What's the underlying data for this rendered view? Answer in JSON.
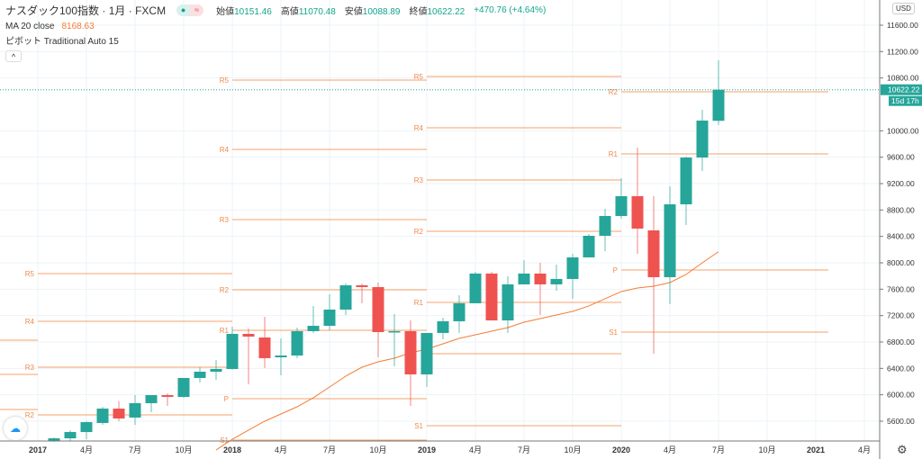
{
  "header": {
    "symbol": "ナスダック100指数",
    "interval": "1月",
    "source": "FXCM",
    "sep": "·",
    "open_label": "始値",
    "open": "10151.46",
    "high_label": "高値",
    "high": "11070.48",
    "low_label": "安値",
    "low": "10088.89",
    "close_label": "終値",
    "close": "10622.22",
    "change": "+470.76 (+4.64%)",
    "ma_label": "MA 20 close",
    "ma_value": "8168.63",
    "pivot_label": "ピボット Traditional Auto 15",
    "collapse": "^",
    "badge_dot": "●",
    "badge_wave": "≈"
  },
  "price_axis": {
    "currency": "USD",
    "ticks": [
      11600,
      11200,
      10800,
      10000,
      9600,
      9200,
      8800,
      8400,
      8000,
      7600,
      7200,
      6800,
      6400,
      6000,
      5600
    ],
    "last_price": "10622.22",
    "countdown": "15d 17h"
  },
  "time_axis": [
    "2017",
    "4月",
    "7月",
    "10月",
    "2018",
    "4月",
    "7月",
    "10月",
    "2019",
    "4月",
    "7月",
    "10月",
    "2020",
    "4月",
    "7月",
    "10月",
    "2021",
    "4月"
  ],
  "colors": {
    "up": "#26a69a",
    "down": "#ef5350",
    "pivot": "#f5a06a",
    "ma": "#f57c35",
    "grid": "#eef3f7"
  },
  "chart_data": {
    "type": "candlestick",
    "start_month": "2017-02",
    "candles": [
      [
        5300,
        5355,
        5287,
        5341
      ],
      [
        5341,
        5464,
        5300,
        5436
      ],
      [
        5436,
        5600,
        5327,
        5586
      ],
      [
        5573,
        5818,
        5546,
        5791
      ],
      [
        5791,
        5900,
        5600,
        5641
      ],
      [
        5655,
        5995,
        5546,
        5873
      ],
      [
        5873,
        5995,
        5736,
        5995
      ],
      [
        5995,
        6023,
        5832,
        5968
      ],
      [
        5968,
        6255,
        5955,
        6255
      ],
      [
        6255,
        6418,
        6186,
        6350
      ],
      [
        6350,
        6527,
        6227,
        6391
      ],
      [
        6391,
        7032,
        6380,
        6923
      ],
      [
        6923,
        7005,
        6159,
        6882
      ],
      [
        6868,
        7182,
        6405,
        6555
      ],
      [
        6568,
        6855,
        6296,
        6595
      ],
      [
        6595,
        7018,
        6555,
        6964
      ],
      [
        6964,
        7346,
        6937,
        7045
      ],
      [
        7045,
        7523,
        6977,
        7291
      ],
      [
        7291,
        7686,
        7209,
        7659
      ],
      [
        7659,
        7686,
        7387,
        7632
      ],
      [
        7632,
        7700,
        6568,
        6950
      ],
      [
        6950,
        7223,
        6432,
        6964
      ],
      [
        6964,
        7127,
        5832,
        6309
      ],
      [
        6309,
        6937,
        6118,
        6937
      ],
      [
        6937,
        7168,
        6841,
        7114
      ],
      [
        7114,
        7509,
        6937,
        7387
      ],
      [
        7387,
        7864,
        7387,
        7837
      ],
      [
        7837,
        7864,
        7127,
        7127
      ],
      [
        7127,
        7795,
        6937,
        7673
      ],
      [
        7673,
        8041,
        7673,
        7837
      ],
      [
        7837,
        8000,
        7209,
        7673
      ],
      [
        7673,
        7973,
        7577,
        7755
      ],
      [
        7755,
        8136,
        7455,
        8082
      ],
      [
        8082,
        8436,
        8082,
        8409
      ],
      [
        8409,
        8818,
        8177,
        8709
      ],
      [
        8709,
        9282,
        8668,
        9009
      ],
      [
        9009,
        9745,
        8136,
        8518
      ],
      [
        8491,
        9009,
        6623,
        7782
      ],
      [
        7782,
        9159,
        7373,
        8886
      ],
      [
        8886,
        9609,
        8573,
        9595
      ],
      [
        9595,
        10318,
        9391,
        10155
      ],
      [
        10151.46,
        11070.48,
        10088.89,
        10622.22
      ]
    ],
    "ma_start_month": "2017-12",
    "ma20": [
      5164,
      5327,
      5464,
      5600,
      5709,
      5818,
      5955,
      6118,
      6282,
      6418,
      6500,
      6555,
      6636,
      6691,
      6773,
      6855,
      6909,
      6964,
      7018,
      7100,
      7155,
      7209,
      7264,
      7346,
      7455,
      7564,
      7618,
      7645,
      7700,
      7823,
      8000,
      8169
    ],
    "pivots": [
      {
        "year": 2016,
        "levels": [
          {
            "label": "",
            "value": 6827
          },
          {
            "label": "",
            "value": 6309
          },
          {
            "label": "",
            "value": 5777
          }
        ]
      },
      {
        "year": 2017,
        "levels": [
          {
            "label": "R5",
            "value": 7837
          },
          {
            "label": "R4",
            "value": 7114
          },
          {
            "label": "R3",
            "value": 6418
          },
          {
            "label": "R2",
            "value": 5696
          }
        ]
      },
      {
        "year": 2018,
        "levels": [
          {
            "label": "R5",
            "value": 10768
          },
          {
            "label": "R4",
            "value": 9718
          },
          {
            "label": "R3",
            "value": 8655
          },
          {
            "label": "R2",
            "value": 7591
          },
          {
            "label": "R1",
            "value": 6977
          },
          {
            "label": "P",
            "value": 5941
          },
          {
            "label": "S1",
            "value": 5314
          }
        ]
      },
      {
        "year": 2019,
        "levels": [
          {
            "label": "R5",
            "value": 10823
          },
          {
            "label": "R4",
            "value": 10045
          },
          {
            "label": "R3",
            "value": 9255
          },
          {
            "label": "R2",
            "value": 8477
          },
          {
            "label": "R1",
            "value": 7400
          },
          {
            "label": "",
            "value": 6623
          },
          {
            "label": "S1",
            "value": 5532
          }
        ]
      },
      {
        "year": 2020,
        "levels": [
          {
            "label": "R2",
            "value": 10591
          },
          {
            "label": "R1",
            "value": 9650
          },
          {
            "label": "P",
            "value": 7891
          },
          {
            "label": "S1",
            "value": 6950
          }
        ]
      }
    ]
  }
}
